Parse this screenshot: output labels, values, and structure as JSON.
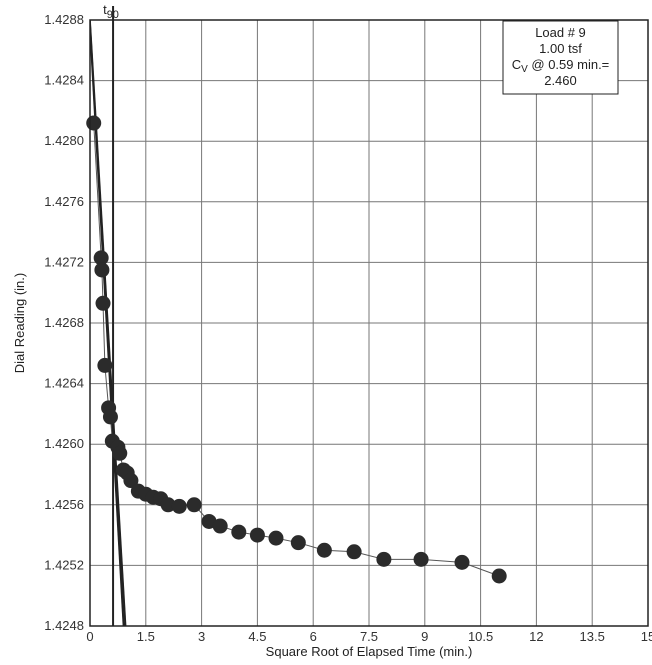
{
  "chart_data": {
    "type": "scatter",
    "xlabel": "Square Root of Elapsed Time (min.)",
    "ylabel": "Dial Reading (in.)",
    "xlim": [
      0,
      15
    ],
    "ylim": [
      1.4248,
      1.4288
    ],
    "x_ticks": [
      0,
      1.5,
      3,
      4.5,
      6,
      7.5,
      9,
      10.5,
      12,
      13.5,
      15
    ],
    "x_tick_labels": [
      "0",
      "1.5",
      "3",
      "4.5",
      "6",
      "7.5",
      "9",
      "10.5",
      "12",
      "13.5",
      "15"
    ],
    "y_ticks": [
      1.4248,
      1.4252,
      1.4256,
      1.426,
      1.4264,
      1.4268,
      1.4272,
      1.4276,
      1.428,
      1.4284,
      1.4288
    ],
    "y_tick_labels": [
      "1.4248",
      "1.4252",
      "1.4256",
      "1.4260",
      "1.4264",
      "1.4268",
      "1.4272",
      "1.4276",
      "1.4280",
      "1.4284",
      "1.4288"
    ],
    "grid": true,
    "legend": {
      "placement": "top-right",
      "load": "Load # 9",
      "pressure": "1.00 tsf",
      "cv_prefix": "C",
      "cv_sub": "V",
      "cv_suffix": " @ 0.59 min.=",
      "cv_value": "2.460"
    },
    "annotation": {
      "text": "t",
      "sub": "90",
      "x": 0.62
    },
    "points": [
      [
        0.1,
        1.42812
      ],
      [
        0.3,
        1.42723
      ],
      [
        0.32,
        1.42715
      ],
      [
        0.35,
        1.42693
      ],
      [
        0.4,
        1.42652
      ],
      [
        0.5,
        1.42624
      ],
      [
        0.55,
        1.42618
      ],
      [
        0.6,
        1.42602
      ],
      [
        0.75,
        1.42598
      ],
      [
        0.8,
        1.42594
      ],
      [
        0.9,
        1.42583
      ],
      [
        1.0,
        1.42581
      ],
      [
        1.1,
        1.42576
      ],
      [
        1.3,
        1.42569
      ],
      [
        1.5,
        1.42567
      ],
      [
        1.7,
        1.42565
      ],
      [
        1.9,
        1.42564
      ],
      [
        2.1,
        1.4256
      ],
      [
        2.4,
        1.42559
      ],
      [
        2.8,
        1.4256
      ],
      [
        3.2,
        1.42549
      ],
      [
        3.5,
        1.42546
      ],
      [
        4.0,
        1.42542
      ],
      [
        4.5,
        1.4254
      ],
      [
        5.0,
        1.42538
      ],
      [
        5.6,
        1.42535
      ],
      [
        6.3,
        1.4253
      ],
      [
        7.1,
        1.42529
      ],
      [
        7.9,
        1.42524
      ],
      [
        8.9,
        1.42524
      ],
      [
        10.0,
        1.42522
      ],
      [
        11.0,
        1.42513
      ]
    ],
    "fit_lines": [
      [
        [
          -0.1,
          1.4292
        ],
        [
          1.0,
          1.4246
        ]
      ],
      [
        [
          -0.1,
          1.4292
        ],
        [
          0.95,
          1.4246
        ]
      ]
    ],
    "vertical_line_x": 0.62
  }
}
